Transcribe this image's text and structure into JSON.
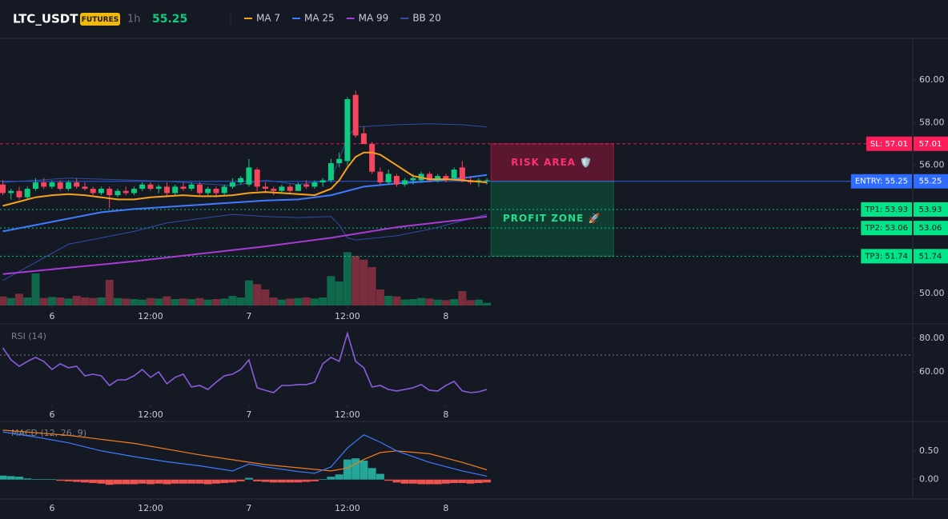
{
  "chart_data": [
    {
      "type": "candlestick",
      "title": "LTC_USDT",
      "badge": "FUTURES",
      "interval": "1h",
      "last_price": 55.25,
      "up_color": "#0ecb81",
      "down_color": "#f6465d",
      "xlim": [
        -0.34,
        110.9
      ],
      "xticks": [
        {
          "value": 6,
          "label": "6"
        },
        {
          "value": 18,
          "label": "12:00"
        },
        {
          "value": 30,
          "label": "7"
        },
        {
          "value": 42,
          "label": "12:00"
        },
        {
          "value": 54,
          "label": "8"
        }
      ],
      "ylim": [
        49.43,
        61.95
      ],
      "yticks": [
        {
          "value": 50,
          "label": "50.00"
        },
        {
          "value": 56,
          "label": "56.00"
        },
        {
          "value": 58,
          "label": "58.00"
        },
        {
          "value": 60,
          "label": "60.00"
        }
      ],
      "ohlc": [
        [
          55.1,
          55.3,
          54.6,
          54.7
        ],
        [
          54.7,
          54.9,
          54.4,
          54.8
        ],
        [
          54.8,
          55.0,
          54.4,
          54.5
        ],
        [
          54.5,
          55.0,
          54.4,
          54.9
        ],
        [
          54.9,
          55.4,
          54.8,
          55.2
        ],
        [
          55.2,
          55.4,
          54.9,
          55.0
        ],
        [
          55.0,
          55.3,
          54.9,
          55.2
        ],
        [
          55.2,
          55.3,
          54.8,
          54.9
        ],
        [
          54.9,
          55.3,
          54.8,
          55.2
        ],
        [
          55.2,
          55.4,
          54.9,
          55.0
        ],
        [
          55.0,
          55.2,
          54.8,
          54.9
        ],
        [
          54.9,
          55.0,
          54.6,
          54.7
        ],
        [
          54.7,
          55.0,
          54.6,
          54.9
        ],
        [
          54.9,
          55.0,
          54.0,
          54.6
        ],
        [
          54.6,
          54.9,
          54.5,
          54.8
        ],
        [
          54.8,
          55.0,
          54.6,
          54.7
        ],
        [
          54.7,
          55.0,
          54.6,
          54.9
        ],
        [
          54.9,
          55.2,
          54.8,
          55.1
        ],
        [
          55.1,
          55.2,
          54.8,
          54.9
        ],
        [
          54.9,
          55.1,
          54.7,
          55.0
        ],
        [
          55.0,
          55.2,
          54.5,
          54.7
        ],
        [
          54.7,
          55.1,
          54.6,
          55.0
        ],
        [
          55.0,
          55.2,
          54.8,
          54.9
        ],
        [
          54.9,
          55.2,
          54.8,
          55.1
        ],
        [
          55.1,
          55.2,
          54.6,
          54.7
        ],
        [
          54.7,
          55.0,
          54.6,
          54.9
        ],
        [
          54.9,
          55.0,
          54.5,
          54.7
        ],
        [
          54.7,
          55.1,
          54.6,
          55.0
        ],
        [
          55.0,
          55.4,
          54.9,
          55.2
        ],
        [
          55.2,
          55.5,
          55.1,
          55.4
        ],
        [
          55.1,
          56.3,
          55.0,
          55.9
        ],
        [
          55.8,
          55.9,
          54.8,
          55.0
        ],
        [
          55.0,
          55.2,
          54.7,
          54.9
        ],
        [
          54.9,
          55.0,
          54.6,
          54.8
        ],
        [
          54.8,
          55.1,
          54.7,
          55.0
        ],
        [
          55.0,
          55.1,
          54.7,
          54.8
        ],
        [
          54.8,
          55.2,
          54.8,
          55.1
        ],
        [
          55.1,
          55.3,
          54.9,
          55.0
        ],
        [
          55.0,
          55.3,
          54.9,
          55.2
        ],
        [
          55.2,
          55.4,
          55.0,
          55.3
        ],
        [
          55.3,
          56.3,
          55.2,
          56.1
        ],
        [
          56.1,
          56.6,
          55.9,
          56.3
        ],
        [
          56.2,
          59.2,
          56.0,
          59.1
        ],
        [
          59.3,
          59.5,
          57.3,
          57.4
        ],
        [
          57.5,
          57.8,
          57.0,
          57.0
        ],
        [
          57.0,
          57.1,
          55.6,
          55.7
        ],
        [
          55.7,
          55.9,
          55.1,
          55.2
        ],
        [
          55.2,
          55.8,
          55.1,
          55.6
        ],
        [
          55.5,
          55.6,
          55.0,
          55.1
        ],
        [
          55.1,
          55.4,
          55.0,
          55.3
        ],
        [
          55.3,
          55.6,
          55.1,
          55.4
        ],
        [
          55.3,
          55.7,
          55.2,
          55.6
        ],
        [
          55.6,
          55.7,
          55.2,
          55.3
        ],
        [
          55.3,
          55.6,
          55.2,
          55.5
        ],
        [
          55.5,
          55.6,
          55.2,
          55.3
        ],
        [
          55.4,
          55.9,
          55.3,
          55.8
        ],
        [
          55.9,
          56.2,
          55.2,
          55.3
        ],
        [
          55.3,
          55.5,
          55.1,
          55.2
        ],
        [
          55.2,
          55.4,
          55.0,
          55.3
        ],
        [
          55.3,
          55.4,
          55.1,
          55.3
        ]
      ],
      "vlim": [
        0,
        150
      ],
      "volume": [
        17,
        14,
        22,
        15,
        60,
        14,
        16,
        15,
        13,
        18,
        15,
        14,
        15,
        48,
        14,
        13,
        12,
        11,
        14,
        13,
        17,
        12,
        13,
        12,
        14,
        11,
        12,
        13,
        18,
        15,
        47,
        40,
        30,
        15,
        11,
        13,
        14,
        15,
        13,
        15,
        55,
        45,
        100,
        93,
        86,
        72,
        30,
        18,
        17,
        11,
        12,
        14,
        13,
        11,
        10,
        12,
        27,
        10,
        11,
        5
      ],
      "series": [
        {
          "name": "MA 7",
          "color": "#f7a21b",
          "x": [
            0,
            2,
            4,
            6,
            8,
            10,
            12,
            14,
            16,
            18,
            20,
            22,
            24,
            26,
            28,
            30,
            32,
            34,
            36,
            38,
            40,
            41,
            42,
            43,
            44,
            45,
            46,
            48,
            50,
            52,
            54,
            56,
            59
          ],
          "values": [
            54.1,
            54.3,
            54.5,
            54.6,
            54.65,
            54.6,
            54.5,
            54.4,
            54.4,
            54.5,
            54.55,
            54.6,
            54.55,
            54.55,
            54.6,
            54.7,
            54.75,
            54.7,
            54.65,
            54.6,
            54.9,
            55.3,
            55.9,
            56.4,
            56.6,
            56.6,
            56.5,
            56.0,
            55.5,
            55.35,
            55.35,
            55.3,
            55.2
          ]
        },
        {
          "name": "MA 25",
          "color": "#3d7bff",
          "x": [
            0,
            4,
            8,
            12,
            16,
            20,
            24,
            28,
            32,
            36,
            40,
            44,
            48,
            52,
            56,
            59
          ],
          "values": [
            52.9,
            53.2,
            53.5,
            53.8,
            53.95,
            54.05,
            54.15,
            54.25,
            54.35,
            54.4,
            54.6,
            55.0,
            55.15,
            55.25,
            55.4,
            55.55
          ]
        },
        {
          "name": "MA 99",
          "color": "#a73bd3",
          "x": [
            0,
            8,
            16,
            24,
            32,
            40,
            48,
            56,
            59
          ],
          "values": [
            50.9,
            51.2,
            51.5,
            51.85,
            52.2,
            52.6,
            53.1,
            53.45,
            53.6
          ]
        },
        {
          "name": "BB 20",
          "color": "#2d4fa8",
          "x": [
            0,
            8,
            16,
            20,
            24,
            28,
            32,
            36,
            40,
            41,
            42,
            43,
            48,
            52,
            56,
            59
          ],
          "upper": [
            55.2,
            55.4,
            55.3,
            55.25,
            55.15,
            55.05,
            55.3,
            55.1,
            55.3,
            56.3,
            57.3,
            57.8,
            57.9,
            57.95,
            57.9,
            57.8
          ],
          "lower": [
            50.6,
            52.3,
            52.9,
            53.3,
            53.5,
            53.7,
            53.6,
            53.55,
            53.6,
            53.2,
            52.6,
            52.5,
            52.7,
            53.0,
            53.4,
            53.7
          ]
        }
      ],
      "levels": [
        {
          "label": "SL: 57.01",
          "value": 57.01,
          "color": "#ff1e5a",
          "text_color": "#ffffff",
          "style": "dashed"
        },
        {
          "label": "ENTRY: 55.25",
          "value": 55.25,
          "color": "#2f6bff",
          "text_color": "#ffffff",
          "style": "solid"
        },
        {
          "label": "TP1: 53.93",
          "value": 53.93,
          "color": "#00e58a",
          "text_color": "#0a1a12",
          "style": "dotted"
        },
        {
          "label": "TP2: 53.06",
          "value": 53.06,
          "color": "#00e58a",
          "text_color": "#0a1a12",
          "style": "dotted"
        },
        {
          "label": "TP3: 51.74",
          "value": 51.74,
          "color": "#00e58a",
          "text_color": "#0a1a12",
          "style": "dotted"
        }
      ],
      "zones": [
        {
          "label": "RISK AREA 🛡️",
          "from": 57.01,
          "to": 55.25,
          "color": "#b0163f",
          "text_color": "#ff2f6d"
        },
        {
          "label": "PROFIT ZONE 🚀",
          "from": 55.25,
          "to": 51.74,
          "color": "#0b6b45",
          "text_color": "#1fe08f"
        }
      ]
    },
    {
      "type": "line",
      "title": "RSI (14)",
      "color": "#8c5ce0",
      "xlim": [
        -0.34,
        110.9
      ],
      "xticks": [
        {
          "value": 6,
          "label": "6"
        },
        {
          "value": 18,
          "label": "12:00"
        },
        {
          "value": 30,
          "label": "7"
        },
        {
          "value": 42,
          "label": "12:00"
        },
        {
          "value": 54,
          "label": "8"
        }
      ],
      "ylim": [
        40.95,
        87.1
      ],
      "yticks": [
        {
          "value": 80,
          "label": "80.00"
        },
        {
          "value": 60,
          "label": "60.00"
        }
      ],
      "level": 70,
      "values": [
        74.3,
        67.1,
        63.3,
        66.2,
        68.6,
        66.2,
        61.4,
        64.8,
        62.4,
        63.3,
        57.6,
        58.6,
        57.6,
        51.9,
        55.2,
        55.2,
        57.6,
        61.4,
        56.7,
        60.0,
        52.9,
        56.7,
        58.6,
        51.0,
        51.9,
        49.5,
        53.8,
        57.6,
        58.6,
        61.4,
        67.1,
        50.5,
        49.0,
        47.6,
        51.9,
        51.9,
        52.4,
        52.4,
        53.8,
        64.8,
        68.6,
        66.2,
        82.9,
        66.2,
        62.4,
        51.0,
        51.9,
        49.5,
        48.6,
        49.5,
        50.5,
        52.4,
        49.0,
        48.6,
        51.9,
        54.3,
        48.6,
        47.6,
        48.1,
        49.5
      ]
    },
    {
      "type": "macd",
      "title": "MACD (12, 26, 9)",
      "pos_color": "#26a69a",
      "neg_color": "#ef5350",
      "xlim": [
        -0.34,
        110.9
      ],
      "xticks": [
        {
          "value": 6,
          "label": "6"
        },
        {
          "value": 18,
          "label": "12:00"
        },
        {
          "value": 30,
          "label": "7"
        },
        {
          "value": 42,
          "label": "12:00"
        },
        {
          "value": 54,
          "label": "8"
        }
      ],
      "ylim": [
        -0.31,
        0.97
      ],
      "yticks": [
        {
          "value": 0.5,
          "label": "0.50"
        },
        {
          "value": 0,
          "label": "0.00"
        }
      ],
      "histogram": [
        0.07,
        0.06,
        0.05,
        0.02,
        0.01,
        0.01,
        0.01,
        -0.02,
        -0.03,
        -0.04,
        -0.05,
        -0.06,
        -0.07,
        -0.09,
        -0.08,
        -0.08,
        -0.08,
        -0.07,
        -0.08,
        -0.07,
        -0.08,
        -0.07,
        -0.07,
        -0.07,
        -0.07,
        -0.08,
        -0.07,
        -0.06,
        -0.05,
        -0.03,
        0.03,
        -0.03,
        -0.04,
        -0.05,
        -0.05,
        -0.05,
        -0.05,
        -0.04,
        -0.03,
        0.01,
        0.05,
        0.09,
        0.35,
        0.37,
        0.33,
        0.2,
        0.1,
        -0.02,
        -0.05,
        -0.07,
        -0.07,
        -0.08,
        -0.08,
        -0.08,
        -0.07,
        -0.06,
        -0.06,
        -0.07,
        -0.06,
        -0.05
      ],
      "macd_line": {
        "color": "#3d7bff",
        "x": [
          0,
          4,
          8,
          12,
          16,
          20,
          24,
          28,
          30,
          32,
          36,
          38,
          40,
          42,
          44,
          46,
          48,
          52,
          56,
          59
        ],
        "values": [
          0.83,
          0.74,
          0.64,
          0.5,
          0.4,
          0.31,
          0.24,
          0.15,
          0.27,
          0.22,
          0.14,
          0.11,
          0.22,
          0.55,
          0.78,
          0.65,
          0.5,
          0.3,
          0.15,
          0.06
        ]
      },
      "signal_line": {
        "color": "#f07c1e",
        "x": [
          0,
          8,
          16,
          24,
          32,
          40,
          42,
          44,
          46,
          48,
          52,
          56,
          59
        ],
        "values": [
          0.86,
          0.77,
          0.63,
          0.43,
          0.26,
          0.15,
          0.2,
          0.35,
          0.47,
          0.5,
          0.45,
          0.3,
          0.17
        ]
      }
    }
  ]
}
